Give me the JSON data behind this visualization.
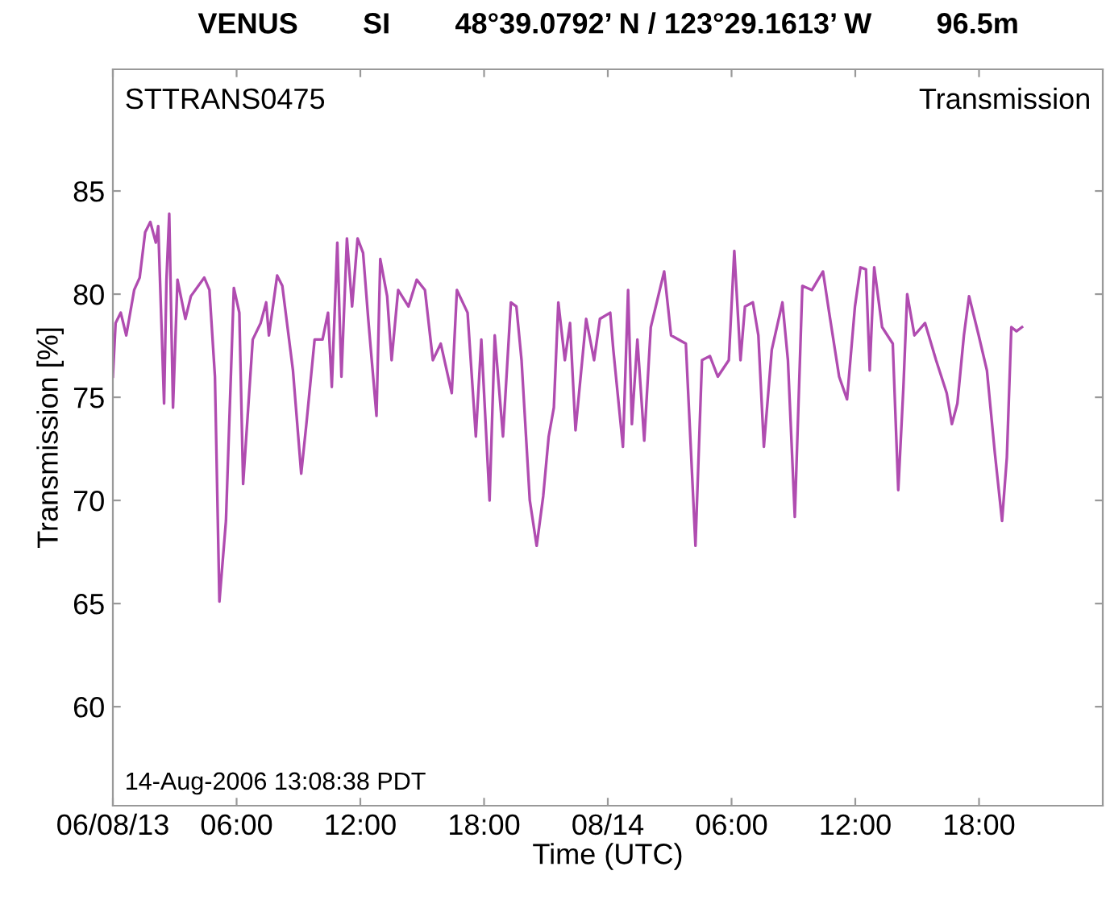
{
  "chart_data": {
    "type": "line",
    "title": "VENUS        SI        48°39.0792’ N / 123°29.1613’ W        96.5m",
    "xlabel": "Time (UTC)",
    "ylabel": "Transmission [%]",
    "annotations": [
      "STTRANS0475",
      "Transmission",
      "14-Aug-2006 13:08:38 PDT"
    ],
    "xlim": [
      "2006-08-13T00:00",
      "2006-08-15T00:00"
    ],
    "ylim": [
      55.2,
      90.9
    ],
    "xticks": [
      {
        "value": "2006-08-13T00:00",
        "label": "06/08/13"
      },
      {
        "value": "2006-08-13T06:00",
        "label": "06:00"
      },
      {
        "value": "2006-08-13T12:00",
        "label": "12:00"
      },
      {
        "value": "2006-08-13T18:00",
        "label": "18:00"
      },
      {
        "value": "2006-08-14T00:00",
        "label": "08/14"
      },
      {
        "value": "2006-08-14T06:00",
        "label": "06:00"
      },
      {
        "value": "2006-08-14T12:00",
        "label": "12:00"
      },
      {
        "value": "2006-08-14T18:00",
        "label": "18:00"
      }
    ],
    "yticks": [
      60,
      65,
      70,
      75,
      80,
      85
    ],
    "grid": false,
    "legend": false,
    "marker": "none",
    "line_style": "solid",
    "series": [
      {
        "color": "#b04cb0",
        "x": [
          "2006-08-13T00:00",
          "2006-08-13T00:08",
          "2006-08-13T00:23",
          "2006-08-13T00:39",
          "2006-08-13T01:02",
          "2006-08-13T01:18",
          "2006-08-13T01:34",
          "2006-08-13T01:49",
          "2006-08-13T02:05",
          "2006-08-13T02:12",
          "2006-08-13T02:29",
          "2006-08-13T02:36",
          "2006-08-13T02:44",
          "2006-08-13T02:55",
          "2006-08-13T03:08",
          "2006-08-13T03:31",
          "2006-08-13T03:47",
          "2006-08-13T04:26",
          "2006-08-13T04:41",
          "2006-08-13T04:57",
          "2006-08-13T05:10",
          "2006-08-13T05:29",
          "2006-08-13T05:52",
          "2006-08-13T06:08",
          "2006-08-13T06:19",
          "2006-08-13T06:47",
          "2006-08-13T07:10",
          "2006-08-13T07:26",
          "2006-08-13T07:34",
          "2006-08-13T07:58",
          "2006-08-13T08:13",
          "2006-08-13T08:44",
          "2006-08-13T09:08",
          "2006-08-13T09:23",
          "2006-08-13T09:47",
          "2006-08-13T10:10",
          "2006-08-13T10:26",
          "2006-08-13T10:37",
          "2006-08-13T10:53",
          "2006-08-13T11:05",
          "2006-08-13T11:21",
          "2006-08-13T11:36",
          "2006-08-13T11:52",
          "2006-08-13T12:08",
          "2006-08-13T12:23",
          "2006-08-13T12:47",
          "2006-08-13T12:58",
          "2006-08-13T13:18",
          "2006-08-13T13:31",
          "2006-08-13T13:50",
          "2006-08-13T14:20",
          "2006-08-13T14:44",
          "2006-08-13T15:08",
          "2006-08-13T15:31",
          "2006-08-13T15:54",
          "2006-08-13T16:26",
          "2006-08-13T16:41",
          "2006-08-13T17:12",
          "2006-08-13T17:36",
          "2006-08-13T17:52",
          "2006-08-13T18:16",
          "2006-08-13T18:31",
          "2006-08-13T18:55",
          "2006-08-13T19:18",
          "2006-08-13T19:34",
          "2006-08-13T19:49",
          "2006-08-13T20:13",
          "2006-08-13T20:33",
          "2006-08-13T20:52",
          "2006-08-13T21:08",
          "2006-08-13T21:23",
          "2006-08-13T21:36",
          "2006-08-13T21:55",
          "2006-08-13T22:10",
          "2006-08-13T22:26",
          "2006-08-13T22:57",
          "2006-08-13T23:20",
          "2006-08-13T23:37",
          "2006-08-14T00:07",
          "2006-08-14T00:16",
          "2006-08-14T00:44",
          "2006-08-14T00:59",
          "2006-08-14T01:10",
          "2006-08-14T01:26",
          "2006-08-14T01:46",
          "2006-08-14T02:05",
          "2006-08-14T02:44",
          "2006-08-14T03:04",
          "2006-08-14T03:47",
          "2006-08-14T04:15",
          "2006-08-14T04:34",
          "2006-08-14T04:57",
          "2006-08-14T05:20",
          "2006-08-14T05:52",
          "2006-08-14T06:08",
          "2006-08-14T06:26",
          "2006-08-14T06:39",
          "2006-08-14T07:02",
          "2006-08-14T07:18",
          "2006-08-14T07:34",
          "2006-08-14T07:57",
          "2006-08-14T08:28",
          "2006-08-14T08:44",
          "2006-08-14T09:04",
          "2006-08-14T09:26",
          "2006-08-14T09:54",
          "2006-08-14T10:26",
          "2006-08-14T10:44",
          "2006-08-14T11:13",
          "2006-08-14T11:36",
          "2006-08-14T11:59",
          "2006-08-14T12:15",
          "2006-08-14T12:31",
          "2006-08-14T12:42",
          "2006-08-14T12:55",
          "2006-08-14T13:18",
          "2006-08-14T13:49",
          "2006-08-14T14:05",
          "2006-08-14T14:20",
          "2006-08-14T14:31",
          "2006-08-14T14:52",
          "2006-08-14T15:23",
          "2006-08-14T15:55",
          "2006-08-14T16:26",
          "2006-08-14T16:41",
          "2006-08-14T16:57",
          "2006-08-14T17:16",
          "2006-08-14T17:31",
          "2006-08-14T17:59",
          "2006-08-14T18:23",
          "2006-08-14T18:46",
          "2006-08-14T19:07",
          "2006-08-14T19:21",
          "2006-08-14T19:34",
          "2006-08-14T19:49",
          "2006-08-14T20:05"
        ],
        "values": [
          76.0,
          78.6,
          79.1,
          78.0,
          80.2,
          80.8,
          83.0,
          83.5,
          82.5,
          83.3,
          74.7,
          80.7,
          83.9,
          74.5,
          80.7,
          78.8,
          79.9,
          80.8,
          80.2,
          76.0,
          65.1,
          69.0,
          80.3,
          79.1,
          70.8,
          77.8,
          78.6,
          79.6,
          78.0,
          80.9,
          80.4,
          76.3,
          71.3,
          73.7,
          77.8,
          77.8,
          79.1,
          75.5,
          82.5,
          76.0,
          82.7,
          79.4,
          82.7,
          82.0,
          78.8,
          74.1,
          81.7,
          79.9,
          76.8,
          80.2,
          79.4,
          80.7,
          80.2,
          76.8,
          77.6,
          75.2,
          80.2,
          79.1,
          73.1,
          77.8,
          70.0,
          78.0,
          73.1,
          79.6,
          79.4,
          76.8,
          70.0,
          67.8,
          70.2,
          73.1,
          74.5,
          79.6,
          76.8,
          78.6,
          73.4,
          78.8,
          76.8,
          78.8,
          79.1,
          77.3,
          72.6,
          80.2,
          73.7,
          77.8,
          72.9,
          78.4,
          81.1,
          78.0,
          77.6,
          67.8,
          76.8,
          77.0,
          76.0,
          76.8,
          82.1,
          76.8,
          79.4,
          79.6,
          78.0,
          72.6,
          77.3,
          79.6,
          76.8,
          69.2,
          80.4,
          80.2,
          81.1,
          79.1,
          76.0,
          74.9,
          79.4,
          81.3,
          81.2,
          76.3,
          81.3,
          78.4,
          77.6,
          70.5,
          75.5,
          80.0,
          78.0,
          78.6,
          76.8,
          75.2,
          73.7,
          74.7,
          78.0,
          79.9,
          78.0,
          76.3,
          72.3,
          69.0,
          72.1,
          78.4,
          78.2,
          78.4
        ]
      }
    ]
  }
}
